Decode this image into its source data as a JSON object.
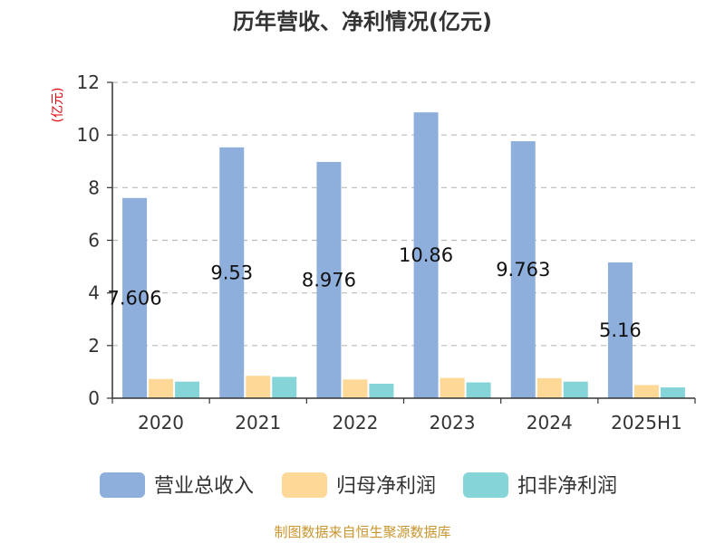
{
  "colors": {
    "revenue": "#8eaedc",
    "net_profit": "#fdd896",
    "non_gaap_profit": "#85d5d8",
    "unit_label": "#e8000b",
    "source": "#c8962e",
    "grid": "#bbbbbb",
    "axis": "#333333"
  },
  "chart_data": {
    "type": "bar",
    "title": "历年营收、净利情况(亿元)",
    "ylabel": "(亿元)",
    "xlabel": "",
    "categories": [
      "2020",
      "2021",
      "2022",
      "2023",
      "2024",
      "2025H1"
    ],
    "ylim": [
      0,
      12
    ],
    "yticks": [
      0,
      2,
      4,
      6,
      8,
      10,
      12
    ],
    "grid": true,
    "legend_position": "bottom",
    "series": [
      {
        "name": "营业总收入",
        "values": [
          7.606,
          9.53,
          8.976,
          10.86,
          9.763,
          5.16
        ],
        "data_labels": [
          "7.606",
          "9.53",
          "8.976",
          "10.86",
          "9.763",
          "5.16"
        ]
      },
      {
        "name": "归母净利润",
        "values": [
          0.73,
          0.85,
          0.71,
          0.77,
          0.76,
          0.5
        ]
      },
      {
        "name": "扣非净利润",
        "values": [
          0.63,
          0.81,
          0.55,
          0.6,
          0.63,
          0.41
        ]
      }
    ]
  },
  "source_text": "制图数据来自恒生聚源数据库"
}
